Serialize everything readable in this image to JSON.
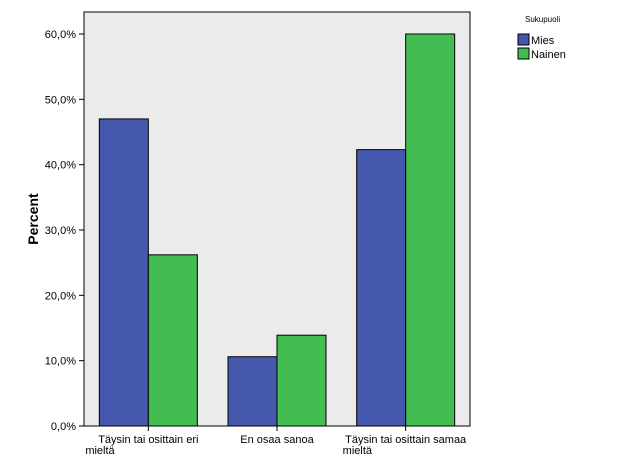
{
  "chart_data": {
    "type": "bar",
    "categories": [
      [
        "Täysin tai osittain eri",
        "mieltä"
      ],
      [
        "En osaa sanoa"
      ],
      [
        "Täysin tai osittain samaa",
        "mieltä"
      ]
    ],
    "series": [
      {
        "name": "Mies",
        "values": [
          47.0,
          10.6,
          42.3
        ]
      },
      {
        "name": "Nainen",
        "values": [
          26.2,
          13.9,
          60.0
        ]
      }
    ],
    "ylabel": "Percent",
    "xlabel": "",
    "ylim": [
      0,
      65
    ],
    "yticks": [
      0,
      10,
      20,
      30,
      40,
      50,
      60
    ],
    "ytick_labels": [
      "0,0%",
      "10,0%",
      "20,0%",
      "30,0%",
      "40,0%",
      "50,0%",
      "60,0%"
    ],
    "legend": {
      "title": "Sukupuoli",
      "position": "top-right"
    },
    "colors": {
      "Mies": "#4558AE",
      "Nainen": "#43BC52",
      "plot_background": "#EBEBEB"
    },
    "grid": false
  }
}
